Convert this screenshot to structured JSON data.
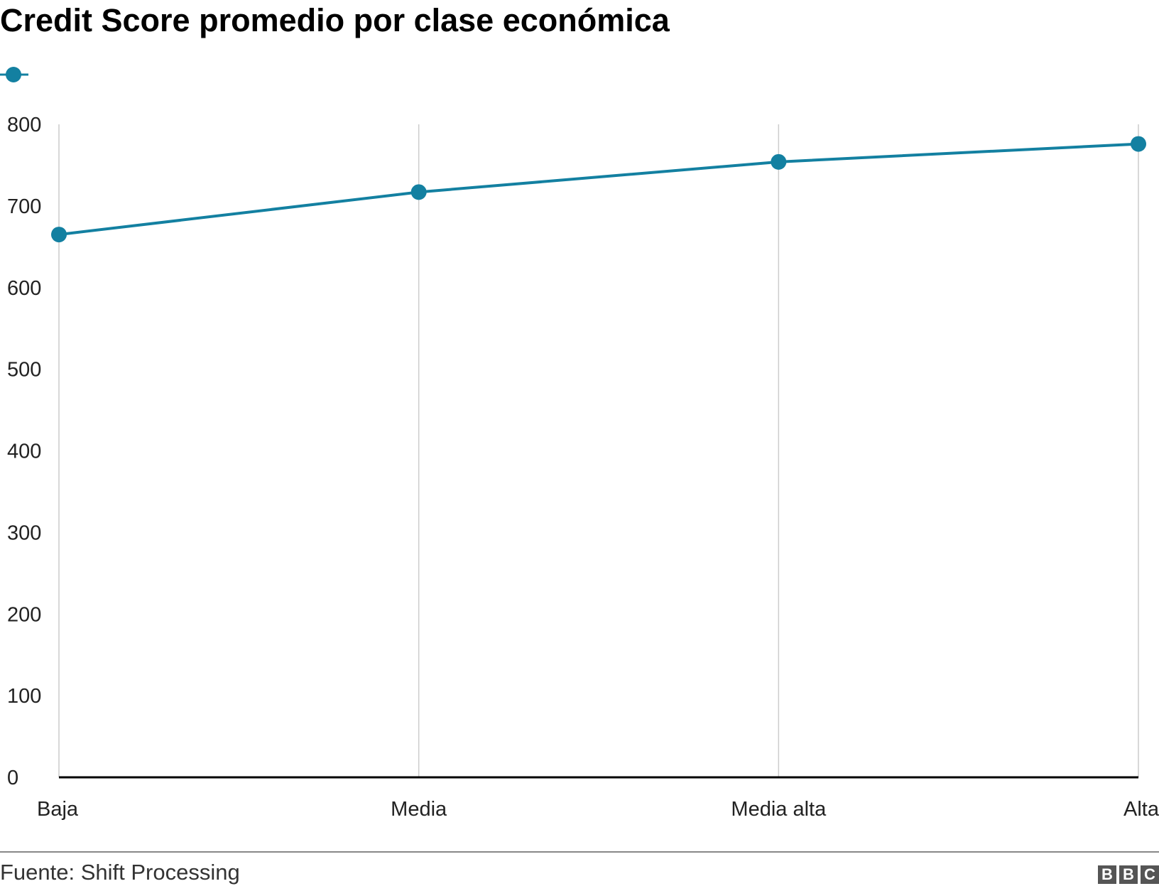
{
  "chart_data": {
    "type": "line",
    "title": "Credit Score promedio por clase económica",
    "categories": [
      "Baja",
      "Media",
      "Media alta",
      "Alta"
    ],
    "series": [
      {
        "values": [
          665,
          717,
          754,
          776
        ],
        "color": "#1380a1"
      }
    ],
    "ylim": [
      0,
      800
    ],
    "yticks": [
      0,
      100,
      200,
      300,
      400,
      500,
      600,
      700,
      800
    ],
    "grid": "vertical",
    "legend": "top-left"
  },
  "footer": {
    "source": "Fuente: Shift Processing",
    "logo": [
      "B",
      "B",
      "C"
    ]
  }
}
